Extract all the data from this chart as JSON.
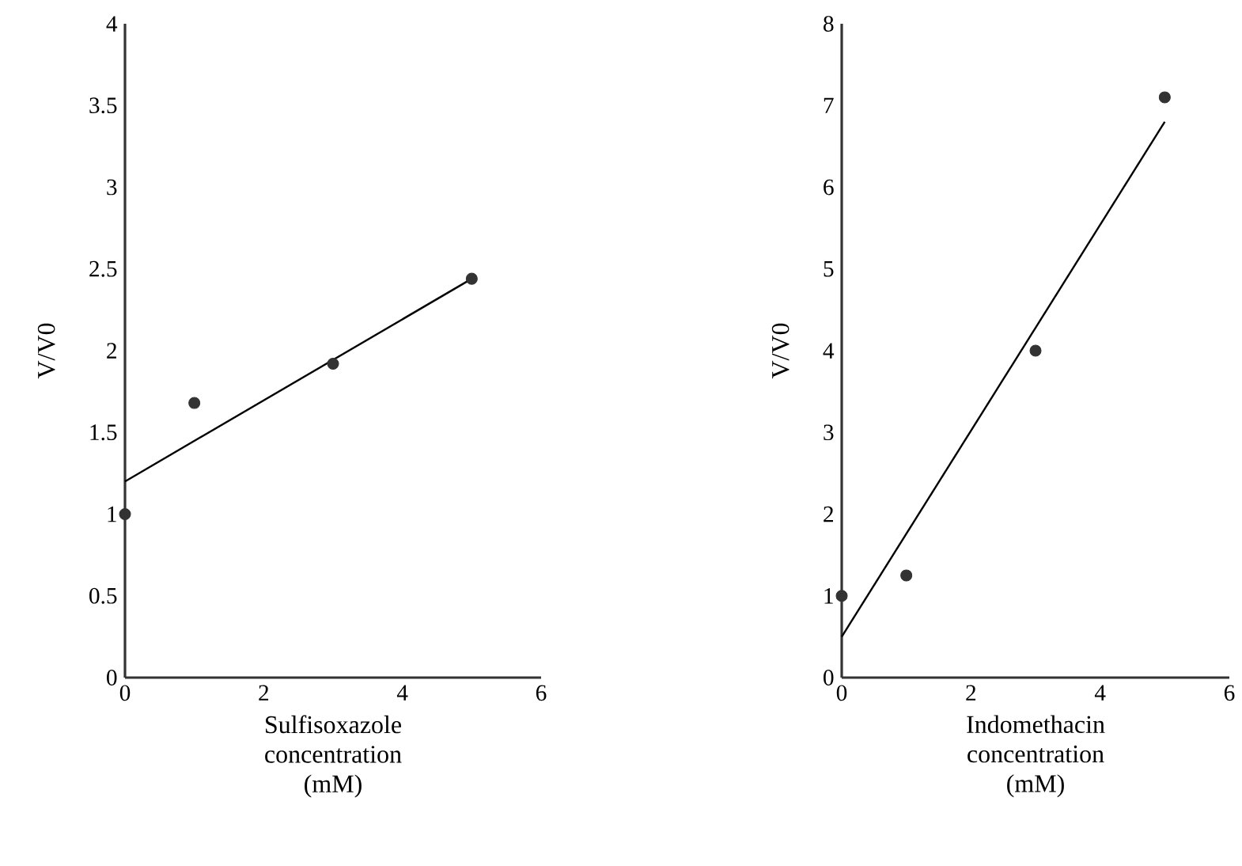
{
  "chart_data": [
    {
      "type": "scatter",
      "xlabel": "Sulfisoxazole concentration (mM)",
      "ylabel": "V/V0",
      "grid": false,
      "xlim": [
        0,
        6
      ],
      "xticks": [
        0,
        2,
        4,
        6
      ],
      "ylim": [
        0,
        4
      ],
      "yticks": [
        0,
        0.5,
        1,
        1.5,
        2,
        2.5,
        3,
        3.5,
        4
      ],
      "series": [
        {
          "type": "scatter",
          "marker": "circle",
          "color": "#333333",
          "x": [
            0,
            1,
            3,
            5
          ],
          "values": [
            1,
            1.68,
            1.92,
            2.44
          ]
        },
        {
          "type": "line",
          "marker": "none",
          "color": "#000000",
          "x": [
            0,
            5
          ],
          "values": [
            1.2,
            2.44
          ]
        }
      ]
    },
    {
      "type": "scatter",
      "xlabel": "Indomethacin concentration (mM)",
      "ylabel": "V/V0",
      "grid": false,
      "xlim": [
        0,
        6
      ],
      "xticks": [
        0,
        2,
        4,
        6
      ],
      "ylim": [
        0,
        8
      ],
      "yticks": [
        0,
        1,
        2,
        3,
        4,
        5,
        6,
        7,
        8
      ],
      "series": [
        {
          "type": "scatter",
          "marker": "circle",
          "color": "#333333",
          "x": [
            0,
            1,
            3,
            5
          ],
          "values": [
            1,
            1.25,
            4,
            7.1
          ]
        },
        {
          "type": "line",
          "marker": "none",
          "color": "#000000",
          "x": [
            0,
            5
          ],
          "values": [
            0.5,
            6.8
          ]
        }
      ]
    }
  ]
}
